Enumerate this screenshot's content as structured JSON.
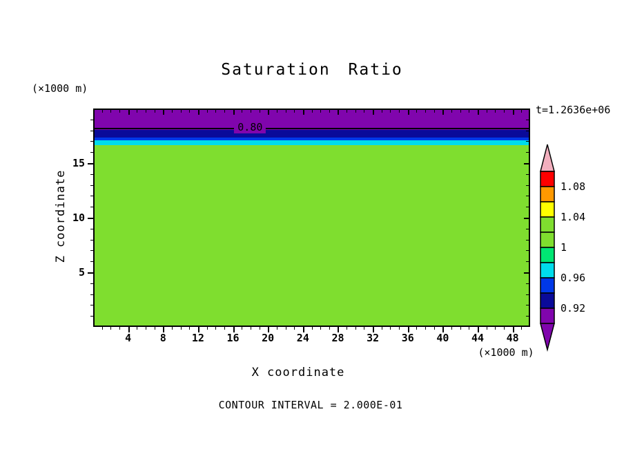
{
  "chart_data": {
    "type": "heatmap",
    "title": "Saturation Ratio",
    "xlabel": "X coordinate",
    "ylabel": "Z coordinate",
    "x_units": "(×1000 m)",
    "y_units": "(×1000 m)",
    "time_label": "t=1.2636e+06",
    "contour_interval_label": "CONTOUR INTERVAL = 2.000E-01",
    "xlim": [
      0,
      50
    ],
    "ylim": [
      0,
      20
    ],
    "x_ticks": [
      4,
      8,
      12,
      16,
      20,
      24,
      28,
      32,
      36,
      40,
      44,
      48
    ],
    "y_ticks": [
      5,
      10,
      15
    ],
    "grid": false,
    "legend_position": "right-colorbar",
    "contour_line": {
      "label": "0.80",
      "z": 18.36,
      "label_x": 17.8
    },
    "layers": [
      {
        "name": "purple",
        "color": "#8005AD",
        "z_from": 18.16,
        "z_to": 20
      },
      {
        "name": "navy",
        "color": "#0A0A99",
        "z_from": 17.47,
        "z_to": 18.16
      },
      {
        "name": "blue",
        "color": "#0038E8",
        "z_from": 17.22,
        "z_to": 17.47
      },
      {
        "name": "cyan",
        "color": "#00DCEC",
        "z_from": 16.77,
        "z_to": 17.22
      },
      {
        "name": "green",
        "color": "#7FDE2F",
        "z_from": 0,
        "z_to": 16.77
      }
    ],
    "colorbar": {
      "labels": [
        "1.08",
        "1.04",
        "1",
        "0.96",
        "0.92"
      ],
      "segments": [
        "#FF0000",
        "#FF9900",
        "#FFFF00",
        "#7FDE2F",
        "#7FDE2F",
        "#00E673",
        "#00DCEC",
        "#0038E8",
        "#0A0A99",
        "#8005AD"
      ],
      "top_arrow_color": "#F2AFBE",
      "bottom_arrow_color": "#8005AD"
    }
  }
}
